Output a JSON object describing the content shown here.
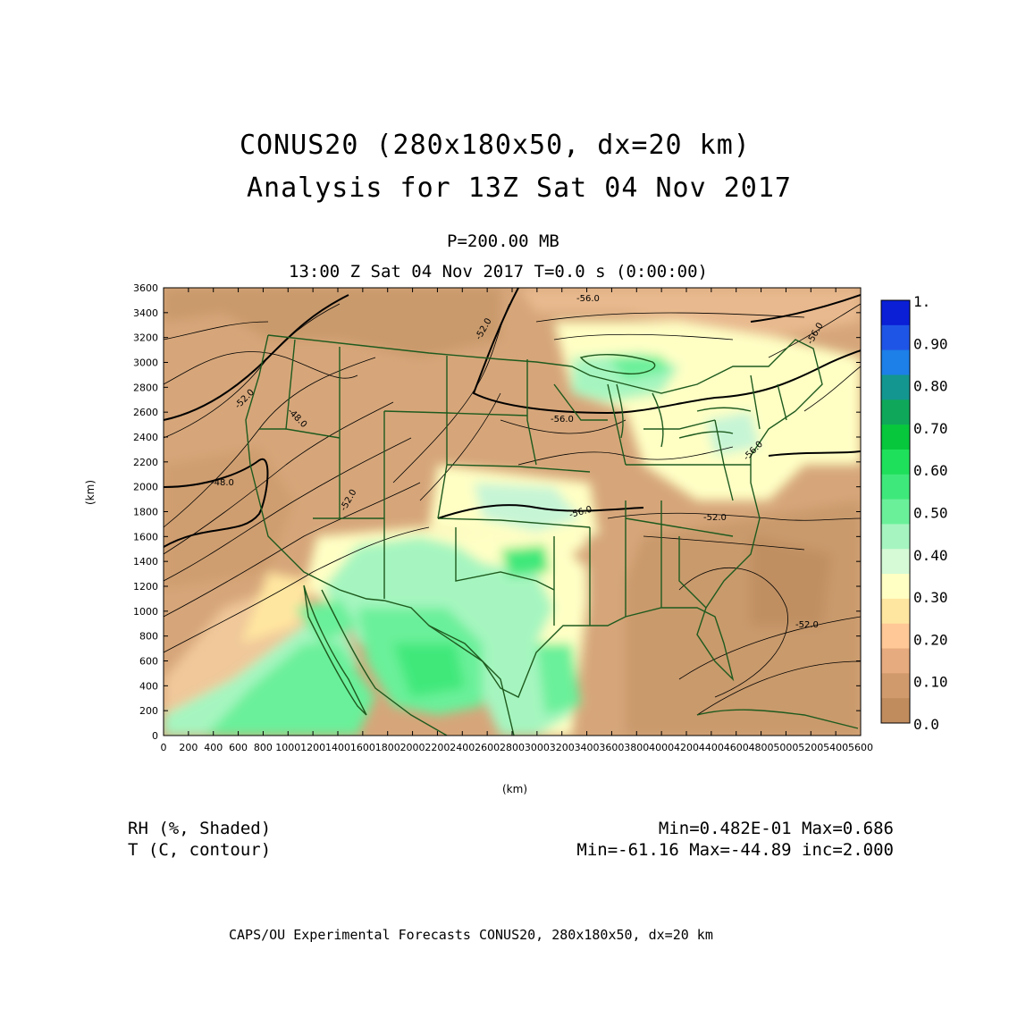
{
  "title": {
    "line1": "CONUS20 (280x180x50, dx=20 km)",
    "line2": "Analysis for 13Z Sat 04 Nov 2017"
  },
  "subtitle": {
    "level": "P=200.00 MB",
    "time": "13:00 Z Sat 04 Nov 2017   T=0.0 s (0:00:00)"
  },
  "axes": {
    "xlabel": "(km)",
    "ylabel": "(km)",
    "x_ticks": [
      "0",
      "200",
      "400",
      "600",
      "800",
      "1000",
      "1200",
      "1400",
      "1600",
      "1800",
      "2000",
      "2200",
      "2400",
      "2600",
      "2800",
      "3000",
      "3200",
      "3400",
      "3600",
      "3800",
      "4000",
      "4200",
      "4400",
      "4600",
      "4800",
      "5000",
      "5200",
      "5400",
      "5600"
    ],
    "y_ticks": [
      "0",
      "200",
      "400",
      "600",
      "800",
      "1000",
      "1200",
      "1400",
      "1600",
      "1800",
      "2000",
      "2200",
      "2400",
      "2600",
      "2800",
      "3000",
      "3200",
      "3400",
      "3600"
    ],
    "x_range": [
      0,
      5600
    ],
    "y_range": [
      0,
      3600
    ]
  },
  "colorbar": {
    "labels": [
      "1.",
      "0.90",
      "0.80",
      "0.70",
      "0.60",
      "0.50",
      "0.40",
      "0.30",
      "0.20",
      "0.10",
      "0.0"
    ],
    "colors": [
      "#0a1fd6",
      "#1f55e6",
      "#1d7fe8",
      "#13968f",
      "#0fa85a",
      "#07c73c",
      "#1fe05a",
      "#3fe87a",
      "#6bf09a",
      "#a6f5c0",
      "#d6fad6",
      "#ffffc4",
      "#ffe6a0",
      "#ffc896",
      "#e6ab7e",
      "#d19a6c",
      "#c08c5e"
    ]
  },
  "contour_labels": [
    "-56.0",
    "-52.0",
    "-52.0",
    "-48.0",
    "-48.0",
    "-52.0",
    "-56.0",
    "-56.0",
    "-52.0",
    "-52.0",
    "-56.0",
    "-56.0"
  ],
  "legend": {
    "shaded_name": "RH (%, Shaded)",
    "shaded_stats": "Min=0.482E-01 Max=0.686",
    "contour_name": "T (C, contour)",
    "contour_stats": "Min=-61.16 Max=-44.89 inc=2.000"
  },
  "footer": "CAPS/OU Experimental Forecasts  CONUS20, 280x180x50, dx=20 km"
}
